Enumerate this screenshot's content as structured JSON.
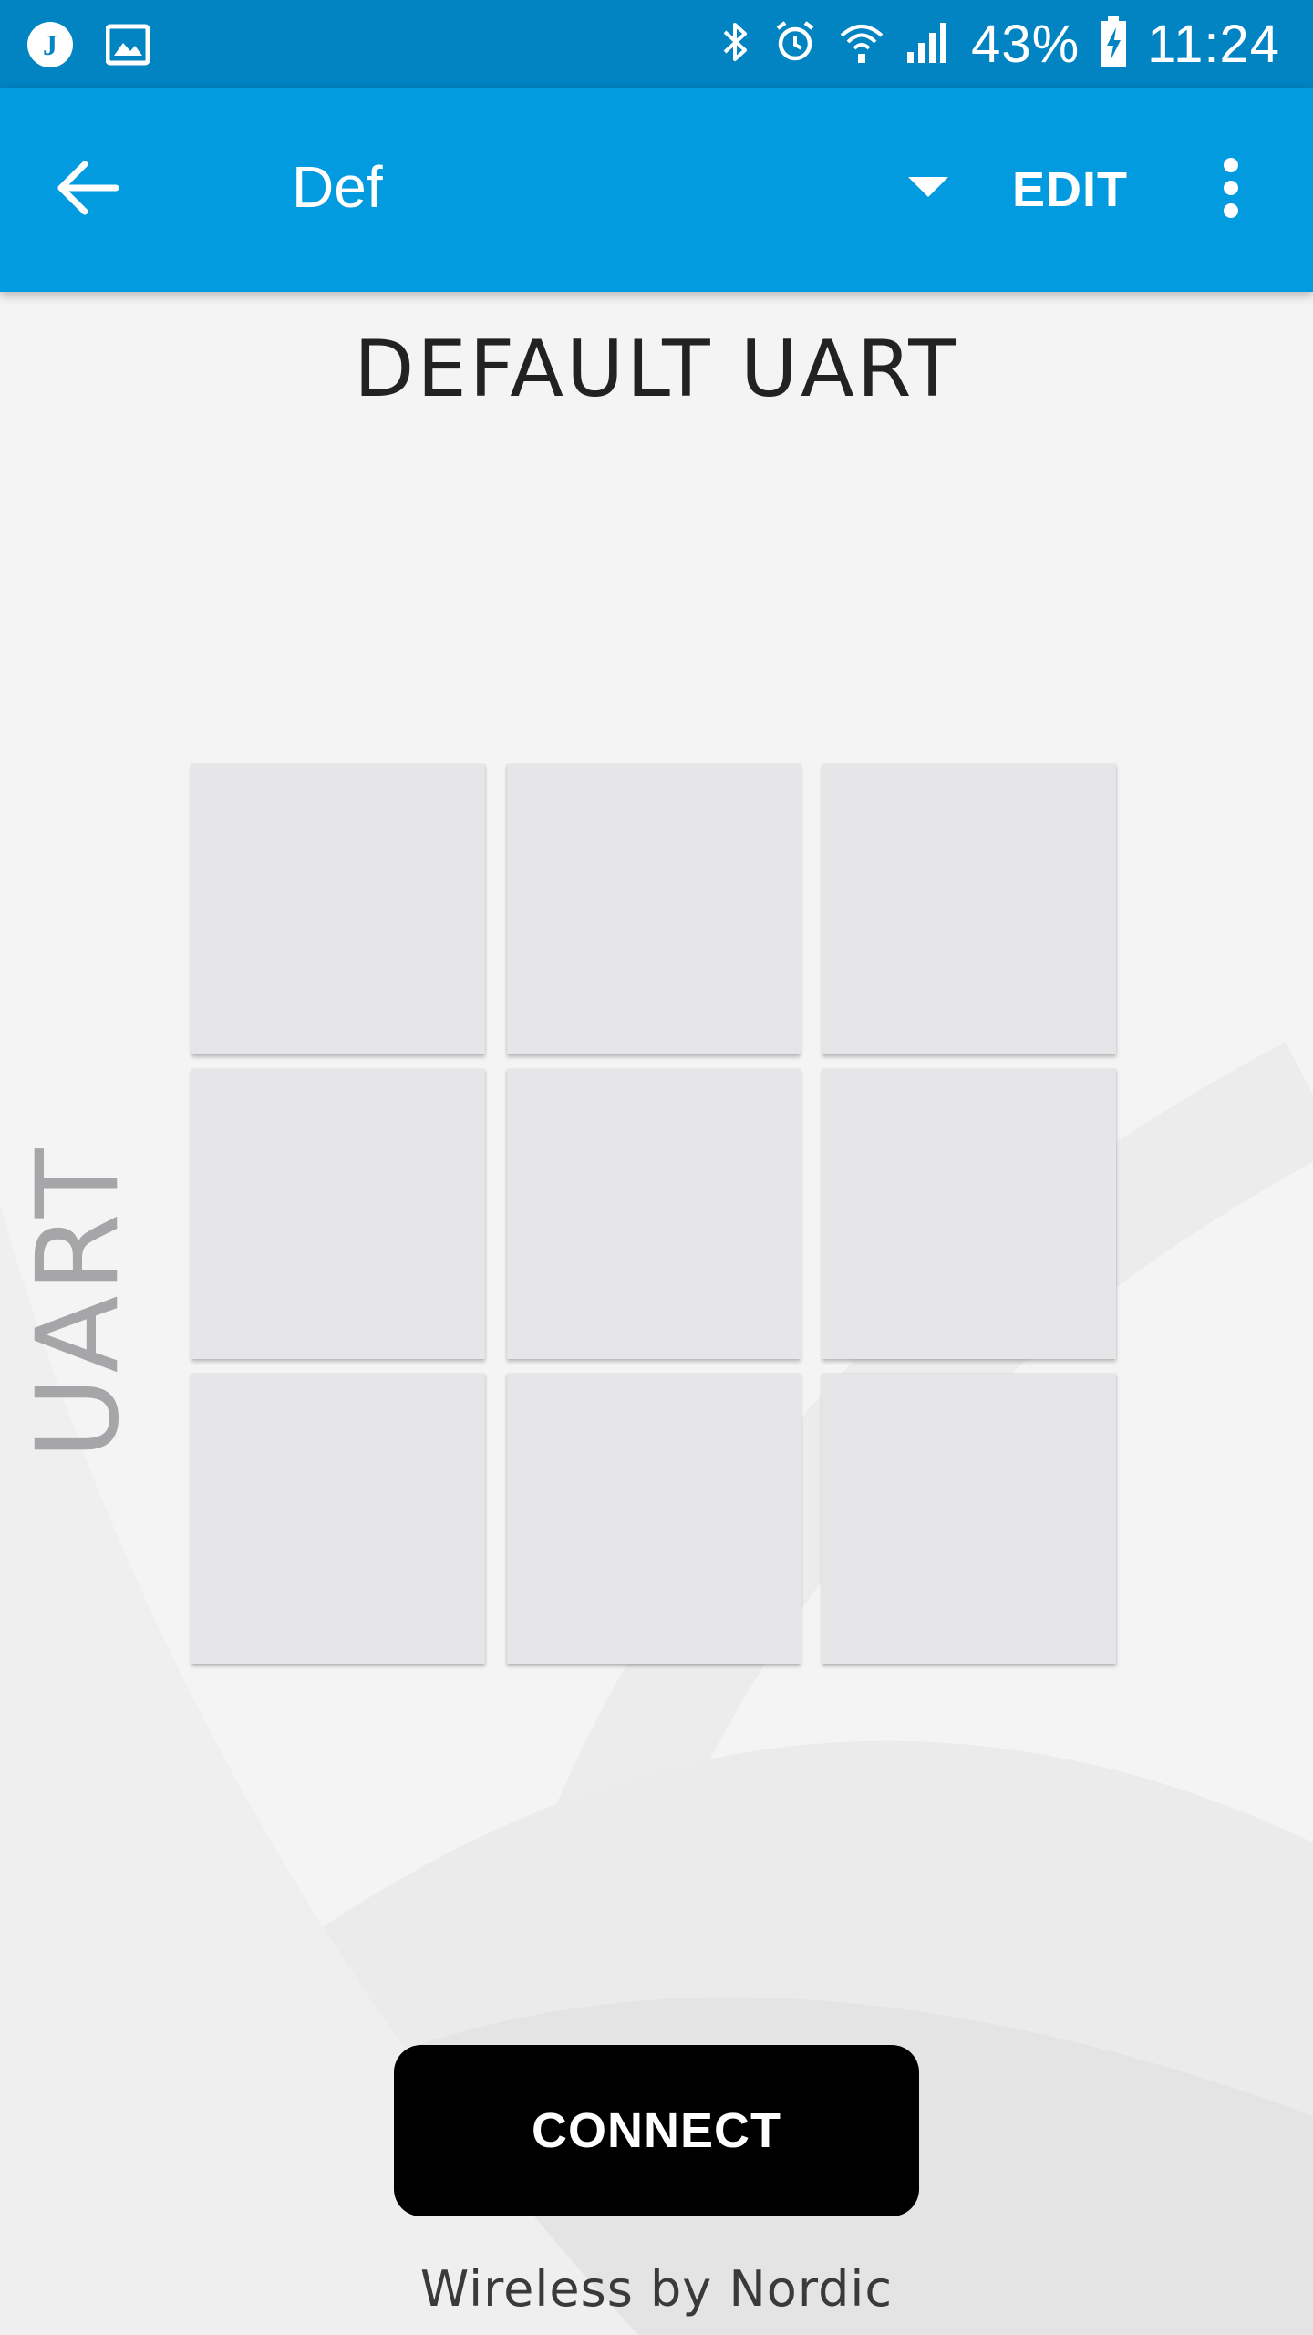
{
  "status_bar": {
    "battery": "43%",
    "time": "11:24",
    "icons": [
      "app-notification-icon",
      "image-notification-icon",
      "bluetooth-icon",
      "alarm-icon",
      "wifi-icon",
      "cell-signal-icon",
      "battery-charging-icon"
    ]
  },
  "app_bar": {
    "back_icon": "arrow-back-icon",
    "profile_name": "Def",
    "dropdown_icon": "dropdown-arrow-icon",
    "edit_label": "EDIT",
    "overflow_icon": "more-vert-icon"
  },
  "main": {
    "title": "DEFAULT UART",
    "side_label": "UART",
    "grid": {
      "rows": 3,
      "columns": 3,
      "cells": [
        "",
        "",
        "",
        "",
        "",
        "",
        "",
        "",
        ""
      ]
    },
    "connect_label": "CONNECT",
    "footer": "Wireless by Nordic"
  },
  "colors": {
    "status_bar": "#0283c2",
    "app_bar": "#039be0",
    "background": "#f4f4f4",
    "cell": "#e6e6e8",
    "connect_button": "#000000",
    "side_label": "#a6a6a8"
  }
}
